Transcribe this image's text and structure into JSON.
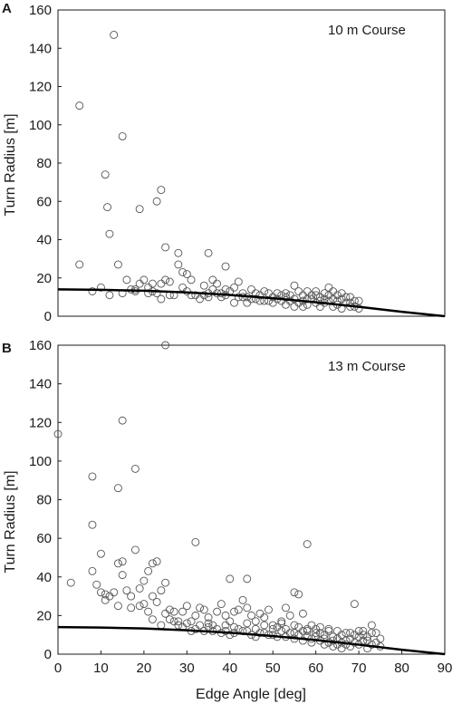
{
  "chart_data": [
    {
      "type": "scatter",
      "panel": "A",
      "title": "",
      "annotation": "10 m Course",
      "xlabel": "",
      "ylabel": "Turn Radius [m]",
      "xlim": [
        0,
        90
      ],
      "ylim": [
        0,
        160
      ],
      "xticks": [],
      "yticks": [
        0,
        20,
        40,
        60,
        80,
        100,
        120,
        140,
        160
      ],
      "grid": false,
      "marker": "open-circle",
      "points": [
        [
          5,
          110
        ],
        [
          13,
          147
        ],
        [
          15,
          94
        ],
        [
          11,
          74
        ],
        [
          11.5,
          57
        ],
        [
          12,
          43
        ],
        [
          19,
          56
        ],
        [
          23,
          60
        ],
        [
          24,
          66
        ],
        [
          25,
          36
        ],
        [
          5,
          27
        ],
        [
          14,
          27
        ],
        [
          10,
          15
        ],
        [
          8,
          13
        ],
        [
          15,
          12
        ],
        [
          16,
          19
        ],
        [
          17,
          14
        ],
        [
          12,
          11
        ],
        [
          18,
          14
        ],
        [
          19,
          17
        ],
        [
          20,
          19
        ],
        [
          21,
          15
        ],
        [
          22,
          13
        ],
        [
          22,
          17
        ],
        [
          23,
          12
        ],
        [
          24,
          9
        ],
        [
          24,
          17
        ],
        [
          25,
          19
        ],
        [
          26,
          18
        ],
        [
          27,
          11
        ],
        [
          28,
          33
        ],
        [
          28,
          27
        ],
        [
          29,
          23
        ],
        [
          30,
          22
        ],
        [
          29,
          15
        ],
        [
          31,
          19
        ],
        [
          30,
          13
        ],
        [
          32,
          11
        ],
        [
          33,
          9
        ],
        [
          34,
          11
        ],
        [
          35,
          12
        ],
        [
          35,
          33
        ],
        [
          36,
          19
        ],
        [
          36,
          14
        ],
        [
          37,
          17
        ],
        [
          38,
          12
        ],
        [
          39,
          26
        ],
        [
          39,
          14
        ],
        [
          40,
          13
        ],
        [
          41,
          7
        ],
        [
          42,
          18
        ],
        [
          43,
          12
        ],
        [
          44,
          10
        ],
        [
          45,
          14
        ],
        [
          46,
          9
        ],
        [
          47,
          11
        ],
        [
          48,
          8
        ],
        [
          48,
          13
        ],
        [
          49,
          12
        ],
        [
          50,
          10
        ],
        [
          51,
          9
        ],
        [
          52,
          11
        ],
        [
          53,
          6
        ],
        [
          53,
          12
        ],
        [
          54,
          8
        ],
        [
          55,
          9
        ],
        [
          55,
          16
        ],
        [
          56,
          7
        ],
        [
          57,
          11
        ],
        [
          58,
          13
        ],
        [
          58,
          6
        ],
        [
          59,
          9
        ],
        [
          60,
          7
        ],
        [
          60,
          13
        ],
        [
          61,
          10
        ],
        [
          61,
          5
        ],
        [
          62,
          12
        ],
        [
          62,
          7
        ],
        [
          63,
          8
        ],
        [
          63,
          15
        ],
        [
          64,
          9
        ],
        [
          64,
          5
        ],
        [
          65,
          11
        ],
        [
          65,
          6
        ],
        [
          66,
          9
        ],
        [
          66,
          4
        ],
        [
          67,
          7
        ],
        [
          68,
          5
        ],
        [
          68,
          10
        ],
        [
          69,
          8
        ],
        [
          70,
          4
        ],
        [
          43,
          10
        ],
        [
          44,
          7
        ],
        [
          46,
          12
        ],
        [
          49,
          8
        ],
        [
          51,
          12
        ],
        [
          54,
          11
        ],
        [
          56,
          13
        ],
        [
          57,
          8
        ],
        [
          59,
          11
        ],
        [
          62,
          9
        ],
        [
          64,
          13
        ],
        [
          67,
          10
        ],
        [
          69,
          5
        ],
        [
          34,
          16
        ],
        [
          38,
          10
        ],
        [
          41,
          15
        ],
        [
          26,
          11
        ],
        [
          21,
          12
        ],
        [
          18,
          13
        ],
        [
          35,
          10
        ],
        [
          47,
          8
        ],
        [
          50,
          7
        ],
        [
          52,
          8
        ],
        [
          53,
          10
        ],
        [
          55,
          5
        ],
        [
          57,
          5
        ],
        [
          58,
          9
        ],
        [
          60,
          11
        ],
        [
          61,
          8
        ],
        [
          63,
          11
        ],
        [
          65,
          8
        ],
        [
          66,
          12
        ],
        [
          68,
          7
        ],
        [
          70,
          8
        ],
        [
          31,
          11
        ],
        [
          37,
          12
        ],
        [
          39,
          11
        ],
        [
          42,
          10
        ],
        [
          45,
          9
        ]
      ],
      "curve": {
        "x": [
          0,
          10,
          20,
          30,
          40,
          50,
          60,
          70,
          80,
          90
        ],
        "y": [
          14,
          13.8,
          13.3,
          12.4,
          11.1,
          9.4,
          7.3,
          4.9,
          2.3,
          0
        ]
      }
    },
    {
      "type": "scatter",
      "panel": "B",
      "title": "",
      "annotation": "13 m Course",
      "xlabel": "Edge Angle [deg]",
      "ylabel": "Turn Radius [m]",
      "xlim": [
        0,
        90
      ],
      "ylim": [
        0,
        160
      ],
      "xticks": [
        0,
        10,
        20,
        30,
        40,
        50,
        60,
        70,
        80,
        90
      ],
      "yticks": [
        0,
        20,
        40,
        60,
        80,
        100,
        120,
        140,
        160
      ],
      "grid": false,
      "marker": "open-circle",
      "points": [
        [
          0,
          114
        ],
        [
          25,
          160
        ],
        [
          15,
          121
        ],
        [
          8,
          92
        ],
        [
          14,
          86
        ],
        [
          18,
          96
        ],
        [
          8,
          67
        ],
        [
          32,
          58
        ],
        [
          58,
          57
        ],
        [
          3,
          37
        ],
        [
          10,
          52
        ],
        [
          8,
          43
        ],
        [
          15,
          41
        ],
        [
          15,
          48
        ],
        [
          14,
          47
        ],
        [
          18,
          54
        ],
        [
          20,
          38
        ],
        [
          21,
          43
        ],
        [
          22,
          47
        ],
        [
          23,
          48
        ],
        [
          40,
          39
        ],
        [
          44,
          39
        ],
        [
          55,
          32
        ],
        [
          56,
          31
        ],
        [
          17,
          30
        ],
        [
          10,
          32
        ],
        [
          11,
          28
        ],
        [
          12,
          30
        ],
        [
          13,
          32
        ],
        [
          16,
          33
        ],
        [
          19,
          34
        ],
        [
          20,
          26
        ],
        [
          22,
          30
        ],
        [
          24,
          33
        ],
        [
          25,
          37
        ],
        [
          26,
          23
        ],
        [
          27,
          22
        ],
        [
          28,
          17
        ],
        [
          29,
          22
        ],
        [
          30,
          25
        ],
        [
          31,
          17
        ],
        [
          32,
          20
        ],
        [
          33,
          24
        ],
        [
          34,
          23
        ],
        [
          35,
          19
        ],
        [
          36,
          15
        ],
        [
          37,
          22
        ],
        [
          38,
          26
        ],
        [
          39,
          20
        ],
        [
          40,
          17
        ],
        [
          41,
          22
        ],
        [
          42,
          23
        ],
        [
          43,
          28
        ],
        [
          44,
          24
        ],
        [
          45,
          20
        ],
        [
          46,
          17
        ],
        [
          47,
          21
        ],
        [
          48,
          19
        ],
        [
          49,
          23
        ],
        [
          50,
          15
        ],
        [
          51,
          14
        ],
        [
          52,
          17
        ],
        [
          53,
          24
        ],
        [
          54,
          20
        ],
        [
          55,
          15
        ],
        [
          56,
          14
        ],
        [
          57,
          21
        ],
        [
          58,
          12
        ],
        [
          59,
          15
        ],
        [
          60,
          11
        ],
        [
          61,
          14
        ],
        [
          62,
          10
        ],
        [
          63,
          12
        ],
        [
          64,
          9
        ],
        [
          65,
          8
        ],
        [
          66,
          10
        ],
        [
          67,
          7
        ],
        [
          68,
          8
        ],
        [
          69,
          26
        ],
        [
          70,
          12
        ],
        [
          71,
          10
        ],
        [
          72,
          9
        ],
        [
          73,
          15
        ],
        [
          74,
          11
        ],
        [
          75,
          8
        ],
        [
          9,
          36
        ],
        [
          11,
          31
        ],
        [
          14,
          25
        ],
        [
          17,
          24
        ],
        [
          21,
          22
        ],
        [
          23,
          27
        ],
        [
          26,
          18
        ],
        [
          28,
          15
        ],
        [
          30,
          16
        ],
        [
          33,
          15
        ],
        [
          35,
          14
        ],
        [
          37,
          13
        ],
        [
          39,
          12
        ],
        [
          41,
          11
        ],
        [
          43,
          12
        ],
        [
          45,
          10
        ],
        [
          47,
          11
        ],
        [
          49,
          10
        ],
        [
          51,
          9
        ],
        [
          53,
          9
        ],
        [
          55,
          8
        ],
        [
          57,
          7
        ],
        [
          59,
          8
        ],
        [
          61,
          7
        ],
        [
          63,
          6
        ],
        [
          65,
          5
        ],
        [
          67,
          5
        ],
        [
          69,
          6
        ],
        [
          71,
          7
        ],
        [
          73,
          5
        ],
        [
          24,
          15
        ],
        [
          27,
          17
        ],
        [
          29,
          14
        ],
        [
          31,
          12
        ],
        [
          34,
          12
        ],
        [
          36,
          12
        ],
        [
          38,
          11
        ],
        [
          40,
          10
        ],
        [
          42,
          13
        ],
        [
          44,
          12
        ],
        [
          46,
          13
        ],
        [
          48,
          11
        ],
        [
          50,
          10
        ],
        [
          52,
          12
        ],
        [
          54,
          11
        ],
        [
          56,
          10
        ],
        [
          58,
          9
        ],
        [
          60,
          9
        ],
        [
          62,
          8
        ],
        [
          64,
          7
        ],
        [
          66,
          6
        ],
        [
          68,
          11
        ],
        [
          70,
          9
        ],
        [
          72,
          7
        ],
        [
          74,
          6
        ],
        [
          25,
          21
        ],
        [
          19,
          25
        ],
        [
          22,
          18
        ],
        [
          32,
          13
        ],
        [
          44,
          16
        ],
        [
          52,
          16
        ],
        [
          63,
          13
        ],
        [
          67,
          11
        ],
        [
          69,
          10
        ],
        [
          71,
          12
        ],
        [
          73,
          11
        ],
        [
          65,
          12
        ],
        [
          61,
          11
        ],
        [
          57,
          12
        ],
        [
          59,
          6
        ],
        [
          62,
          5
        ],
        [
          64,
          4
        ],
        [
          66,
          3
        ],
        [
          68,
          4
        ],
        [
          70,
          5
        ],
        [
          72,
          3
        ],
        [
          75,
          4
        ],
        [
          48,
          15
        ],
        [
          50,
          13
        ],
        [
          46,
          9
        ],
        [
          39,
          15
        ],
        [
          35,
          16
        ],
        [
          41,
          14
        ],
        [
          53,
          13
        ],
        [
          55,
          11
        ],
        [
          58,
          13
        ],
        [
          60,
          13
        ]
      ],
      "curve": {
        "x": [
          0,
          10,
          20,
          30,
          40,
          50,
          60,
          70,
          80,
          90
        ],
        "y": [
          14,
          13.8,
          13.3,
          12.4,
          11.1,
          9.4,
          7.3,
          4.9,
          2.3,
          0
        ]
      }
    }
  ]
}
